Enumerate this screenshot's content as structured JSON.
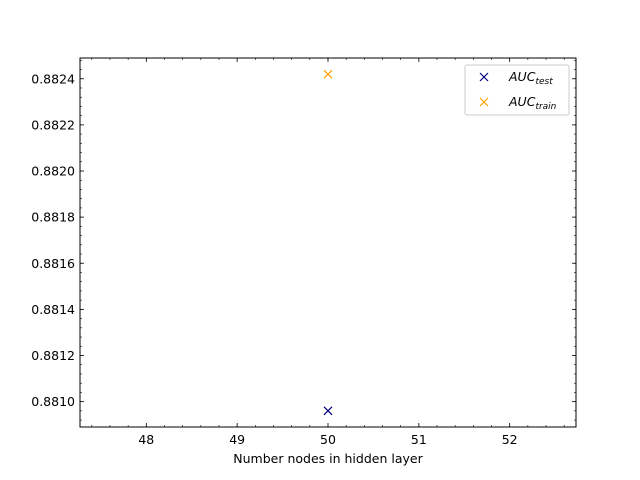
{
  "chart_data": {
    "type": "scatter",
    "title": "",
    "xlabel": "Number nodes in hidden layer",
    "ylabel": "",
    "xlim": [
      47.27,
      52.73
    ],
    "ylim": [
      0.88089,
      0.88249
    ],
    "xticks": [
      48,
      49,
      50,
      51,
      52
    ],
    "xtick_labels": [
      "48",
      "49",
      "50",
      "51",
      "52"
    ],
    "xminor_step": 0.2,
    "yticks": [
      0.881,
      0.8812,
      0.8814,
      0.8816,
      0.8818,
      0.882,
      0.8822,
      0.8824
    ],
    "ytick_labels": [
      "0.8810",
      "0.8812",
      "0.8814",
      "0.8816",
      "0.8818",
      "0.8820",
      "0.8822",
      "0.8824"
    ],
    "yminor_step": 4e-05,
    "grid": false,
    "legend_position": "top-right",
    "series": [
      {
        "name": "AUC",
        "subscript": "test",
        "color": "#000080",
        "marker": "x",
        "x": [
          50
        ],
        "y": [
          0.88096
        ]
      },
      {
        "name": "AUC",
        "subscript": "train",
        "color": "#ffa500",
        "marker": "x",
        "x": [
          50
        ],
        "y": [
          0.88242
        ]
      }
    ]
  }
}
